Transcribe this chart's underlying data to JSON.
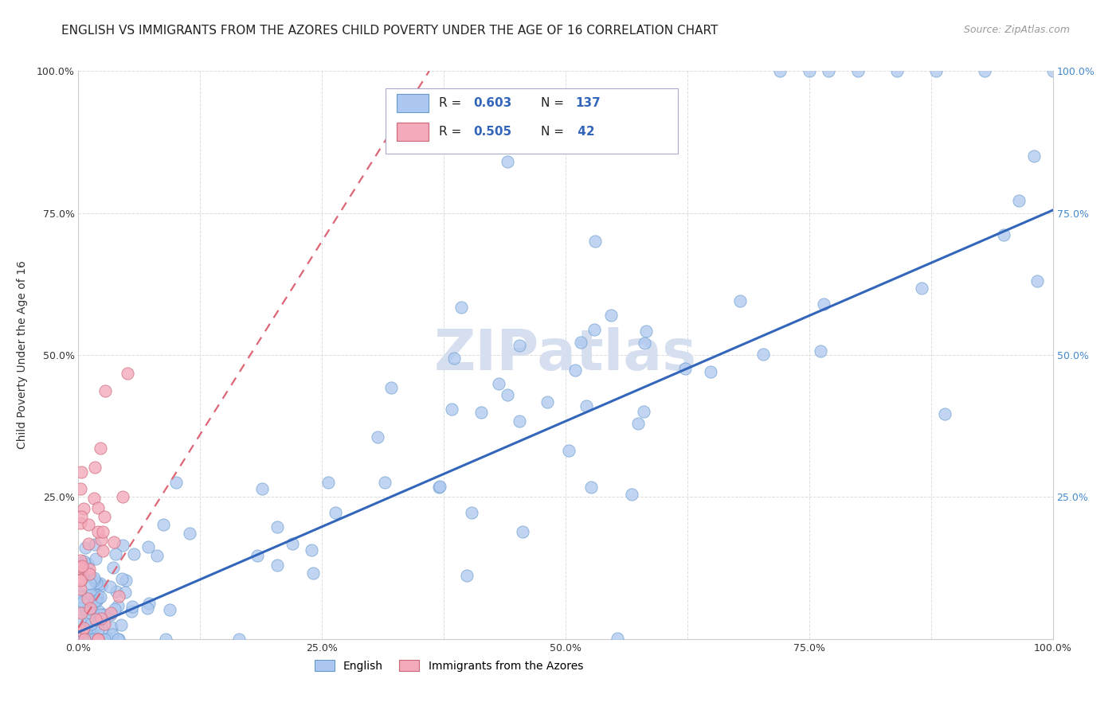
{
  "title": "ENGLISH VS IMMIGRANTS FROM THE AZORES CHILD POVERTY UNDER THE AGE OF 16 CORRELATION CHART",
  "source": "Source: ZipAtlas.com",
  "ylabel": "Child Poverty Under the Age of 16",
  "xlim": [
    0,
    1.0
  ],
  "ylim": [
    0,
    1.0
  ],
  "xtick_labels": [
    "0.0%",
    "",
    "25.0%",
    "",
    "50.0%",
    "",
    "75.0%",
    "",
    "100.0%"
  ],
  "xtick_vals": [
    0.0,
    0.125,
    0.25,
    0.375,
    0.5,
    0.625,
    0.75,
    0.875,
    1.0
  ],
  "ytick_labels": [
    "",
    "25.0%",
    "50.0%",
    "75.0%",
    "100.0%"
  ],
  "ytick_vals": [
    0.0,
    0.25,
    0.5,
    0.75,
    1.0
  ],
  "right_ytick_labels": [
    "25.0%",
    "50.0%",
    "75.0%",
    "100.0%"
  ],
  "right_ytick_vals": [
    0.25,
    0.5,
    0.75,
    1.0
  ],
  "english_color": "#adc8f0",
  "english_edge_color": "#6699cc",
  "azores_color": "#f4aabb",
  "azores_edge_color": "#cc6677",
  "english_line_color": "#3366bb",
  "azores_line_color": "#dd6677",
  "right_tick_color": "#4488cc",
  "watermark_color": "#d5dff0",
  "background_color": "#ffffff",
  "grid_color": "#dddddd",
  "title_fontsize": 11,
  "source_fontsize": 9,
  "axis_label_fontsize": 10,
  "tick_fontsize": 9,
  "legend_value_color": "#3366bb",
  "legend_box_color": "#f0f4ff",
  "legend_box_edge": "#aaaacc",
  "eng_trend_x0": 0.0,
  "eng_trend_y0": 0.012,
  "eng_trend_x1": 1.0,
  "eng_trend_y1": 0.755,
  "az_trend_x0": 0.0,
  "az_trend_y0": 0.02,
  "az_trend_x1": 0.36,
  "az_trend_y1": 1.0
}
